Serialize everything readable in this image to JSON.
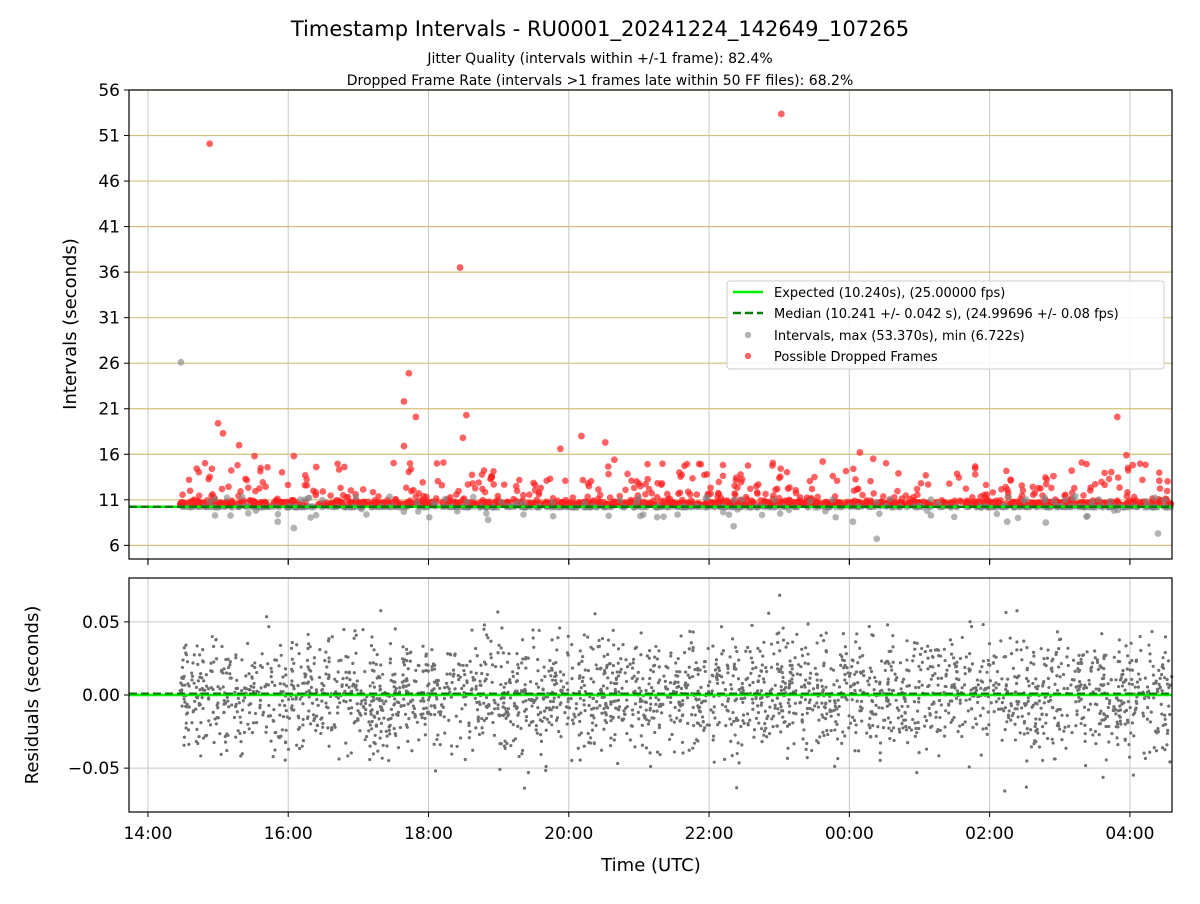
{
  "title": "Timestamp Intervals - RU0001_20241224_142649_107265",
  "subtitle_1": "Jitter Quality (intervals within +/-1 frame): 82.4%",
  "subtitle_2": "Dropped Frame Rate (intervals >1 frames late within 50 FF files): 68.2%",
  "colors": {
    "expected_line": "#00ee00",
    "median_line": "#007f00",
    "intervals_points": "#808080",
    "dropped_points": "#ff2020",
    "horizontal_grid_top": "#d4c07a",
    "grid": "#c8c8c8",
    "residual_points": "#707070"
  },
  "chart_data": [
    {
      "type": "scatter",
      "ylabel": "Intervals (seconds)",
      "x_unit": "hours since 14:00 UTC, 2024-12-24",
      "xlim": [
        -0.27,
        14.6
      ],
      "ylim": [
        4.5,
        56
      ],
      "yticks": [
        6,
        11,
        16,
        21,
        26,
        31,
        36,
        41,
        46,
        51,
        56
      ],
      "xticks": [
        0,
        2,
        4,
        6,
        8,
        10,
        12,
        14
      ],
      "grid": true,
      "legend_position": "right",
      "legend": [
        {
          "key": "expected",
          "label": "Expected (10.240s), (25.00000 fps)"
        },
        {
          "key": "median",
          "label": "Median (10.241 +/- 0.042 s), (24.99696 +/- 0.08 fps)"
        },
        {
          "key": "intervals",
          "label": "Intervals, max (53.370s), min (6.722s)"
        },
        {
          "key": "dropped",
          "label": "Possible Dropped Frames"
        }
      ],
      "expected_value": 10.24,
      "median_value": 10.241,
      "series_range": [
        0.46,
        14.6
      ],
      "notable_points": [
        {
          "x": 0.47,
          "y": 26.1,
          "series": "intervals"
        },
        {
          "x": 0.88,
          "y": 50.1,
          "series": "dropped"
        },
        {
          "x": 4.45,
          "y": 36.5,
          "series": "dropped"
        },
        {
          "x": 9.03,
          "y": 53.37,
          "series": "dropped"
        },
        {
          "x": 3.72,
          "y": 24.9,
          "series": "dropped"
        },
        {
          "x": 3.82,
          "y": 20.1,
          "series": "dropped"
        },
        {
          "x": 3.65,
          "y": 21.8,
          "series": "dropped"
        },
        {
          "x": 4.54,
          "y": 20.3,
          "series": "dropped"
        },
        {
          "x": 13.82,
          "y": 20.1,
          "series": "dropped"
        },
        {
          "x": 1.0,
          "y": 19.4,
          "series": "dropped"
        },
        {
          "x": 1.07,
          "y": 18.3,
          "series": "dropped"
        },
        {
          "x": 4.49,
          "y": 17.8,
          "series": "dropped"
        },
        {
          "x": 3.65,
          "y": 16.9,
          "series": "dropped"
        },
        {
          "x": 1.3,
          "y": 17.0,
          "series": "dropped"
        },
        {
          "x": 6.18,
          "y": 18.0,
          "series": "dropped"
        },
        {
          "x": 6.52,
          "y": 17.3,
          "series": "dropped"
        },
        {
          "x": 5.88,
          "y": 16.6,
          "series": "dropped"
        },
        {
          "x": 10.15,
          "y": 16.2,
          "series": "dropped"
        },
        {
          "x": 13.95,
          "y": 15.9,
          "series": "dropped"
        },
        {
          "x": 1.52,
          "y": 15.8,
          "series": "dropped"
        },
        {
          "x": 2.08,
          "y": 15.8,
          "series": "dropped"
        },
        {
          "x": 10.34,
          "y": 15.5,
          "series": "dropped"
        },
        {
          "x": 6.65,
          "y": 15.4,
          "series": "dropped"
        },
        {
          "x": 9.62,
          "y": 15.2,
          "series": "dropped"
        },
        {
          "x": 14.04,
          "y": 14.8,
          "series": "dropped"
        },
        {
          "x": 13.17,
          "y": 14.2,
          "series": "dropped"
        },
        {
          "x": 2.4,
          "y": 14.6,
          "series": "dropped"
        },
        {
          "x": 2.8,
          "y": 14.6,
          "series": "dropped"
        },
        {
          "x": 10.7,
          "y": 13.9,
          "series": "dropped"
        },
        {
          "x": 14.42,
          "y": 13.1,
          "series": "dropped"
        },
        {
          "x": 4.9,
          "y": 13.6,
          "series": "dropped"
        },
        {
          "x": 12.3,
          "y": 13.2,
          "series": "dropped"
        },
        {
          "x": 12.91,
          "y": 13.6,
          "series": "dropped"
        },
        {
          "x": 2.08,
          "y": 7.9,
          "series": "intervals"
        },
        {
          "x": 10.39,
          "y": 6.722,
          "series": "intervals"
        },
        {
          "x": 14.4,
          "y": 7.3,
          "series": "intervals"
        },
        {
          "x": 1.85,
          "y": 8.6,
          "series": "intervals"
        },
        {
          "x": 10.05,
          "y": 8.6,
          "series": "intervals"
        },
        {
          "x": 12.25,
          "y": 8.6,
          "series": "intervals"
        },
        {
          "x": 12.8,
          "y": 8.5,
          "series": "intervals"
        },
        {
          "x": 8.35,
          "y": 8.1,
          "series": "intervals"
        },
        {
          "x": 4.85,
          "y": 8.8,
          "series": "intervals"
        }
      ]
    },
    {
      "type": "scatter",
      "xlabel": "Time (UTC)",
      "ylabel": "Residuals (seconds)",
      "xlim": [
        -0.27,
        14.6
      ],
      "ylim": [
        -0.08,
        0.08
      ],
      "yticks": [
        -0.05,
        0.0,
        0.05
      ],
      "ytick_labels": [
        "−0.05",
        "0.00",
        "0.05"
      ],
      "xticks": [
        0,
        2,
        4,
        6,
        8,
        10,
        12,
        14
      ],
      "xtick_labels": [
        "14:00",
        "16:00",
        "18:00",
        "20:00",
        "22:00",
        "00:00",
        "02:00",
        "04:00"
      ],
      "grid": true,
      "expected_value": 0.0,
      "median_value": 0.001,
      "series_range": [
        0.46,
        14.6
      ]
    }
  ]
}
